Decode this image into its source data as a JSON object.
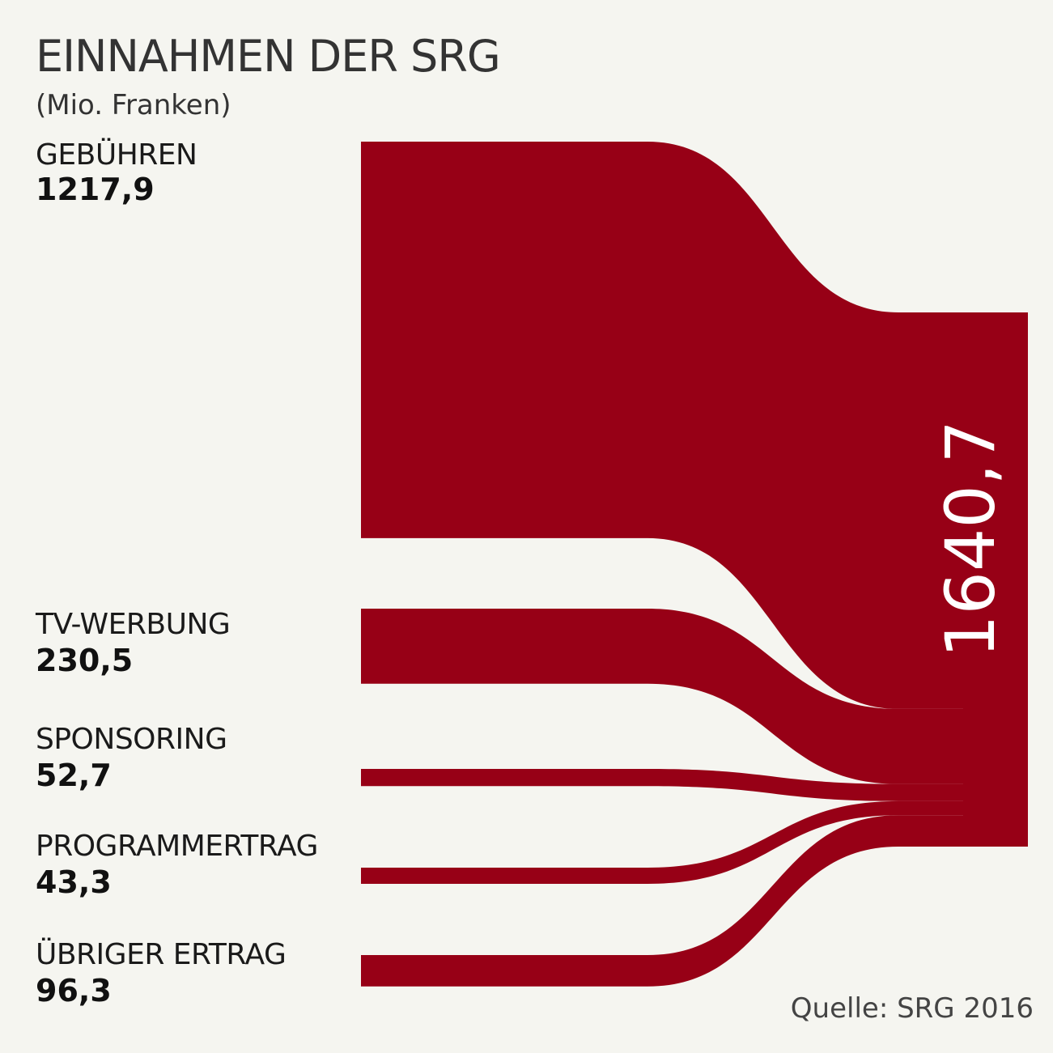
{
  "chart_data": {
    "type": "sankey",
    "title": "EINNAHMEN DER SRG",
    "subtitle": "(Mio. Franken)",
    "source_note": "Quelle: SRG 2016",
    "flows": [
      {
        "name": "GEBÜHREN",
        "value": 1217.9,
        "value_label": "1217,9"
      },
      {
        "name": "TV-WERBUNG",
        "value": 230.5,
        "value_label": "230,5"
      },
      {
        "name": "SPONSORING",
        "value": 52.7,
        "value_label": "52,7"
      },
      {
        "name": "PROGRAMMERTRAG",
        "value": 43.3,
        "value_label": "43,3"
      },
      {
        "name": "ÜBRIGER ERTRAG",
        "value": 96.3,
        "value_label": "96,3"
      }
    ],
    "total": 1640.7,
    "total_label": "1640,7",
    "colors": {
      "flow": "#970016",
      "background": "#f5f5f0",
      "total_text": "#ffffff"
    }
  }
}
